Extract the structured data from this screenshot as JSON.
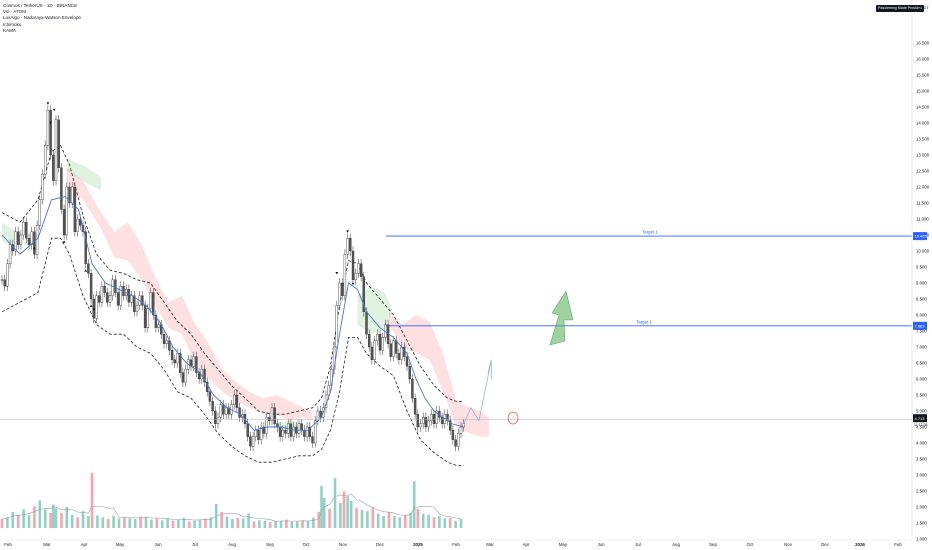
{
  "legend": {
    "title": "Cosmos / TetherUS · 1D · BINANCE",
    "line2": "Vol · ATOM",
    "line3": "LuxAlgo - Nadaraya-Watson Envelope",
    "line4": "Ichimoku",
    "line5": "KAMA"
  },
  "header": {
    "badge": "Pasoleming Mode Provided",
    "unit": "USDT"
  },
  "chart_data": {
    "type": "line",
    "title": "Cosmos / TetherUS · 1D · BINANCE",
    "xlabel": "",
    "ylabel": "USDT",
    "ylim": [
      0.5,
      17.0
    ],
    "grid": false,
    "y_ticks": [
      "1.000",
      "1.500",
      "2.000",
      "2.500",
      "3.000",
      "3.500",
      "4.000",
      "4.500",
      "5.000",
      "5.500",
      "6.000",
      "6.500",
      "7.000",
      "7.500",
      "8.000",
      "8.500",
      "9.000",
      "9.500",
      "10.000",
      "10.500",
      "11.000",
      "11.500",
      "12.000",
      "12.500",
      "13.000",
      "13.500",
      "14.000",
      "14.500",
      "15.000",
      "15.500",
      "16.000",
      "16.500"
    ],
    "x_ticks": [
      "Feb",
      "Mar",
      "Apr",
      "May",
      "Jun",
      "Jul",
      "Aug",
      "Sep",
      "Oct",
      "Nov",
      "Dec",
      "2025",
      "Feb",
      "Mar",
      "Apr",
      "May",
      "Jun",
      "Jul",
      "Aug",
      "Sep",
      "Oct",
      "Nov",
      "Dec",
      "2026",
      "Feb"
    ],
    "price": [
      [
        0,
        9.1
      ],
      [
        3,
        8.9
      ],
      [
        6,
        9.6
      ],
      [
        9,
        10.2
      ],
      [
        12,
        10.0
      ],
      [
        15,
        10.6
      ],
      [
        18,
        10.2
      ],
      [
        21,
        10.5
      ],
      [
        24,
        10.9
      ],
      [
        27,
        10.4
      ],
      [
        30,
        10.2
      ],
      [
        33,
        10.6
      ],
      [
        36,
        9.9
      ],
      [
        39,
        10.8
      ],
      [
        42,
        11.6
      ],
      [
        45,
        12.4
      ],
      [
        48,
        13.3
      ],
      [
        51,
        14.4
      ],
      [
        54,
        13.0
      ],
      [
        57,
        12.2
      ],
      [
        60,
        14.1
      ],
      [
        63,
        12.6
      ],
      [
        66,
        11.3
      ],
      [
        69,
        10.5
      ],
      [
        72,
        12.0
      ],
      [
        75,
        11.5
      ],
      [
        78,
        12.0
      ],
      [
        81,
        10.6
      ],
      [
        84,
        11.0
      ],
      [
        87,
        10.8
      ],
      [
        90,
        10.6
      ],
      [
        93,
        9.6
      ],
      [
        96,
        9.3
      ],
      [
        99,
        8.5
      ],
      [
        102,
        7.9
      ],
      [
        105,
        8.6
      ],
      [
        108,
        8.4
      ],
      [
        111,
        8.9
      ],
      [
        114,
        8.7
      ],
      [
        117,
        8.4
      ],
      [
        120,
        8.6
      ],
      [
        123,
        9.1
      ],
      [
        126,
        8.7
      ],
      [
        129,
        8.3
      ],
      [
        132,
        8.9
      ],
      [
        135,
        8.6
      ],
      [
        138,
        8.8
      ],
      [
        141,
        8.4
      ],
      [
        144,
        8.6
      ],
      [
        147,
        8.1
      ],
      [
        150,
        8.3
      ],
      [
        153,
        8.6
      ],
      [
        156,
        8.3
      ],
      [
        159,
        7.6
      ],
      [
        162,
        8.2
      ],
      [
        165,
        8.7
      ],
      [
        168,
        8.0
      ],
      [
        171,
        7.6
      ],
      [
        174,
        7.7
      ],
      [
        177,
        7.4
      ],
      [
        180,
        7.1
      ],
      [
        183,
        7.2
      ],
      [
        186,
        6.9
      ],
      [
        189,
        6.6
      ],
      [
        192,
        6.5
      ],
      [
        195,
        6.8
      ],
      [
        198,
        6.2
      ],
      [
        201,
        5.9
      ],
      [
        204,
        6.3
      ],
      [
        207,
        6.6
      ],
      [
        210,
        6.4
      ],
      [
        213,
        6.7
      ],
      [
        216,
        6.2
      ],
      [
        219,
        6.0
      ],
      [
        222,
        6.3
      ],
      [
        225,
        5.9
      ],
      [
        228,
        5.6
      ],
      [
        231,
        5.3
      ],
      [
        234,
        5.0
      ],
      [
        237,
        4.6
      ],
      [
        240,
        4.8
      ],
      [
        243,
        5.2
      ],
      [
        246,
        4.9
      ],
      [
        249,
        5.1
      ],
      [
        252,
        4.9
      ],
      [
        255,
        5.2
      ],
      [
        258,
        5.5
      ],
      [
        261,
        5.1
      ],
      [
        264,
        4.8
      ],
      [
        267,
        4.9
      ],
      [
        270,
        4.6
      ],
      [
        273,
        4.2
      ],
      [
        276,
        3.9
      ],
      [
        279,
        4.2
      ],
      [
        282,
        4.4
      ],
      [
        285,
        4.1
      ],
      [
        288,
        4.5
      ],
      [
        291,
        4.3
      ],
      [
        294,
        4.8
      ],
      [
        297,
        4.7
      ],
      [
        300,
        5.1
      ],
      [
        303,
        4.6
      ],
      [
        306,
        4.5
      ],
      [
        309,
        4.2
      ],
      [
        312,
        4.4
      ],
      [
        315,
        4.3
      ],
      [
        318,
        4.6
      ],
      [
        321,
        4.2
      ],
      [
        324,
        4.5
      ],
      [
        327,
        4.3
      ],
      [
        330,
        4.6
      ],
      [
        333,
        4.4
      ],
      [
        336,
        4.2
      ],
      [
        339,
        4.5
      ],
      [
        342,
        4.2
      ],
      [
        345,
        4.0
      ],
      [
        348,
        4.7
      ],
      [
        351,
        5.0
      ],
      [
        354,
        4.8
      ],
      [
        357,
        5.1
      ],
      [
        360,
        5.5
      ],
      [
        363,
        5.8
      ],
      [
        366,
        6.3
      ],
      [
        369,
        7.0
      ],
      [
        372,
        8.3
      ],
      [
        375,
        9.0
      ],
      [
        378,
        8.6
      ],
      [
        381,
        9.9
      ],
      [
        384,
        10.4
      ],
      [
        387,
        10.0
      ],
      [
        390,
        9.1
      ],
      [
        393,
        9.3
      ],
      [
        396,
        9.6
      ],
      [
        399,
        9.2
      ],
      [
        402,
        8.1
      ],
      [
        405,
        7.4
      ],
      [
        408,
        7.0
      ],
      [
        411,
        6.6
      ],
      [
        414,
        7.2
      ],
      [
        417,
        7.4
      ],
      [
        420,
        6.9
      ],
      [
        423,
        7.3
      ],
      [
        426,
        7.7
      ],
      [
        429,
        7.1
      ],
      [
        432,
        6.7
      ],
      [
        435,
        7.2
      ],
      [
        438,
        6.8
      ],
      [
        441,
        6.6
      ],
      [
        444,
        7.0
      ],
      [
        447,
        6.7
      ],
      [
        450,
        6.4
      ],
      [
        453,
        6.0
      ],
      [
        456,
        5.4
      ],
      [
        459,
        4.9
      ],
      [
        462,
        4.5
      ],
      [
        465,
        4.6
      ],
      [
        468,
        4.8
      ],
      [
        471,
        4.5
      ],
      [
        474,
        4.7
      ],
      [
        477,
        4.9
      ],
      [
        480,
        4.6
      ],
      [
        483,
        5.0
      ],
      [
        486,
        4.8
      ],
      [
        489,
        4.6
      ],
      [
        492,
        4.9
      ],
      [
        495,
        4.7
      ],
      [
        498,
        4.4
      ],
      [
        501,
        4.1
      ],
      [
        504,
        3.9
      ],
      [
        507,
        4.3
      ],
      [
        510,
        4.5
      ],
      [
        513,
        4.6
      ]
    ],
    "kama": [
      [
        0,
        10.5
      ],
      [
        20,
        9.9
      ],
      [
        40,
        10.4
      ],
      [
        55,
        11.6
      ],
      [
        70,
        11.7
      ],
      [
        85,
        11.3
      ],
      [
        100,
        9.6
      ],
      [
        115,
        9.0
      ],
      [
        130,
        8.8
      ],
      [
        145,
        8.6
      ],
      [
        160,
        8.3
      ],
      [
        175,
        7.8
      ],
      [
        190,
        7.0
      ],
      [
        205,
        6.5
      ],
      [
        220,
        6.2
      ],
      [
        235,
        5.5
      ],
      [
        250,
        5.1
      ],
      [
        265,
        4.9
      ],
      [
        280,
        4.4
      ],
      [
        295,
        4.5
      ],
      [
        310,
        4.5
      ],
      [
        325,
        4.4
      ],
      [
        340,
        4.4
      ],
      [
        355,
        4.8
      ],
      [
        365,
        5.6
      ],
      [
        375,
        7.4
      ],
      [
        385,
        9.0
      ],
      [
        395,
        8.8
      ],
      [
        405,
        8.1
      ],
      [
        420,
        7.6
      ],
      [
        435,
        7.3
      ],
      [
        450,
        6.8
      ],
      [
        460,
        6.0
      ],
      [
        470,
        5.4
      ],
      [
        480,
        5.0
      ],
      [
        490,
        4.8
      ],
      [
        500,
        4.6
      ],
      [
        513,
        4.5
      ]
    ],
    "envelope_upper": [
      [
        0,
        11.2
      ],
      [
        20,
        10.9
      ],
      [
        40,
        11.6
      ],
      [
        55,
        13.1
      ],
      [
        65,
        13.3
      ],
      [
        75,
        12.7
      ],
      [
        90,
        11.1
      ],
      [
        105,
        9.9
      ],
      [
        120,
        9.4
      ],
      [
        135,
        9.3
      ],
      [
        150,
        9.1
      ],
      [
        165,
        9.0
      ],
      [
        180,
        8.4
      ],
      [
        195,
        7.8
      ],
      [
        210,
        7.4
      ],
      [
        225,
        6.8
      ],
      [
        240,
        6.3
      ],
      [
        255,
        5.8
      ],
      [
        270,
        5.4
      ],
      [
        285,
        5.0
      ],
      [
        300,
        4.9
      ],
      [
        315,
        4.9
      ],
      [
        330,
        5.0
      ],
      [
        345,
        5.1
      ],
      [
        355,
        5.4
      ],
      [
        365,
        6.4
      ],
      [
        375,
        8.3
      ],
      [
        385,
        9.7
      ],
      [
        395,
        9.6
      ],
      [
        405,
        9.0
      ],
      [
        420,
        8.5
      ],
      [
        435,
        8.0
      ],
      [
        450,
        7.2
      ],
      [
        465,
        6.4
      ],
      [
        480,
        5.8
      ],
      [
        495,
        5.4
      ],
      [
        505,
        5.3
      ],
      [
        513,
        5.3
      ]
    ],
    "envelope_lower": [
      [
        0,
        8.1
      ],
      [
        20,
        8.4
      ],
      [
        40,
        8.7
      ],
      [
        55,
        10.4
      ],
      [
        65,
        10.4
      ],
      [
        75,
        9.9
      ],
      [
        90,
        8.6
      ],
      [
        105,
        7.7
      ],
      [
        120,
        7.4
      ],
      [
        135,
        7.4
      ],
      [
        150,
        7.0
      ],
      [
        165,
        6.8
      ],
      [
        180,
        6.3
      ],
      [
        195,
        5.6
      ],
      [
        210,
        5.4
      ],
      [
        225,
        4.9
      ],
      [
        240,
        4.3
      ],
      [
        255,
        3.9
      ],
      [
        270,
        3.6
      ],
      [
        285,
        3.4
      ],
      [
        300,
        3.4
      ],
      [
        315,
        3.5
      ],
      [
        330,
        3.6
      ],
      [
        345,
        3.6
      ],
      [
        355,
        3.8
      ],
      [
        365,
        4.4
      ],
      [
        375,
        5.6
      ],
      [
        385,
        7.3
      ],
      [
        395,
        7.3
      ],
      [
        405,
        6.8
      ],
      [
        420,
        6.4
      ],
      [
        435,
        6.1
      ],
      [
        450,
        5.0
      ],
      [
        465,
        4.1
      ],
      [
        480,
        3.7
      ],
      [
        495,
        3.4
      ],
      [
        505,
        3.3
      ],
      [
        513,
        3.3
      ]
    ],
    "cloud_red": [
      [
        72,
        12.6,
        11.9
      ],
      [
        90,
        12.2,
        11.6
      ],
      [
        110,
        11.2,
        10.7
      ],
      [
        125,
        10.6,
        9.8
      ],
      [
        140,
        10.9,
        9.7
      ],
      [
        155,
        10.2,
        9.1
      ],
      [
        170,
        9.2,
        8.3
      ],
      [
        185,
        8.4,
        7.6
      ],
      [
        200,
        8.6,
        7.4
      ],
      [
        215,
        7.7,
        6.5
      ],
      [
        230,
        7.1,
        6.0
      ],
      [
        245,
        6.3,
        5.6
      ],
      [
        260,
        5.9,
        5.3
      ],
      [
        275,
        5.6,
        5.1
      ],
      [
        290,
        5.4,
        4.9
      ],
      [
        305,
        5.5,
        4.9
      ],
      [
        320,
        5.3,
        4.7
      ],
      [
        335,
        5.1,
        4.8
      ],
      [
        345,
        5.0,
        4.7
      ],
      [
        430,
        8.1,
        7.7
      ],
      [
        445,
        7.7,
        7.0
      ],
      [
        460,
        8.0,
        6.8
      ],
      [
        475,
        7.8,
        6.6
      ],
      [
        490,
        6.8,
        5.6
      ],
      [
        505,
        5.3,
        4.5
      ],
      [
        520,
        5.1,
        4.3
      ],
      [
        532,
        5.0,
        4.2
      ],
      [
        541,
        4.8,
        4.2
      ]
    ],
    "cloud_green": [
      [
        0,
        10.9,
        10.3
      ],
      [
        15,
        10.6,
        10.1
      ],
      [
        72,
        12.9,
        12.5
      ],
      [
        95,
        12.6,
        12.1
      ],
      [
        110,
        12.3,
        11.9
      ],
      [
        305,
        4.6,
        4.3
      ],
      [
        320,
        4.7,
        4.4
      ],
      [
        335,
        4.6,
        4.4
      ],
      [
        395,
        8.6,
        7.7
      ],
      [
        410,
        8.9,
        7.4
      ],
      [
        425,
        8.7,
        7.6
      ],
      [
        432,
        8.3,
        8.0
      ]
    ],
    "volume": [
      [
        0,
        0.15
      ],
      [
        6,
        0.18
      ],
      [
        12,
        0.27
      ],
      [
        18,
        0.22
      ],
      [
        24,
        0.31
      ],
      [
        30,
        0.21
      ],
      [
        36,
        0.36
      ],
      [
        42,
        0.46
      ],
      [
        48,
        0.31
      ],
      [
        54,
        0.25
      ],
      [
        57,
        0.39
      ],
      [
        60,
        0.33
      ],
      [
        66,
        0.25
      ],
      [
        72,
        0.35
      ],
      [
        78,
        0.22
      ],
      [
        84,
        0.18
      ],
      [
        90,
        0.28
      ],
      [
        96,
        0.2
      ],
      [
        100,
        0.92
      ],
      [
        106,
        0.21
      ],
      [
        112,
        0.18
      ],
      [
        118,
        0.15
      ],
      [
        124,
        0.2
      ],
      [
        130,
        0.16
      ],
      [
        136,
        0.18
      ],
      [
        142,
        0.16
      ],
      [
        148,
        0.15
      ],
      [
        154,
        0.19
      ],
      [
        160,
        0.19
      ],
      [
        166,
        0.14
      ],
      [
        172,
        0.16
      ],
      [
        178,
        0.13
      ],
      [
        184,
        0.16
      ],
      [
        190,
        0.12
      ],
      [
        196,
        0.14
      ],
      [
        202,
        0.17
      ],
      [
        208,
        0.11
      ],
      [
        214,
        0.12
      ],
      [
        220,
        0.14
      ],
      [
        226,
        0.16
      ],
      [
        232,
        0.18
      ],
      [
        238,
        0.4
      ],
      [
        244,
        0.27
      ],
      [
        250,
        0.19
      ],
      [
        256,
        0.15
      ],
      [
        262,
        0.17
      ],
      [
        268,
        0.16
      ],
      [
        274,
        0.24
      ],
      [
        280,
        0.11
      ],
      [
        286,
        0.13
      ],
      [
        292,
        0.12
      ],
      [
        298,
        0.1
      ],
      [
        304,
        0.11
      ],
      [
        310,
        0.12
      ],
      [
        316,
        0.14
      ],
      [
        322,
        0.1
      ],
      [
        328,
        0.11
      ],
      [
        334,
        0.13
      ],
      [
        340,
        0.11
      ],
      [
        346,
        0.17
      ],
      [
        352,
        0.27
      ],
      [
        355,
        0.7
      ],
      [
        358,
        0.5
      ],
      [
        364,
        0.32
      ],
      [
        370,
        0.83
      ],
      [
        376,
        0.42
      ],
      [
        380,
        0.61
      ],
      [
        384,
        0.53
      ],
      [
        388,
        0.45
      ],
      [
        394,
        0.33
      ],
      [
        400,
        0.3
      ],
      [
        406,
        0.28
      ],
      [
        412,
        0.34
      ],
      [
        418,
        0.24
      ],
      [
        424,
        0.2
      ],
      [
        430,
        0.26
      ],
      [
        436,
        0.2
      ],
      [
        442,
        0.18
      ],
      [
        448,
        0.22
      ],
      [
        454,
        0.25
      ],
      [
        458,
        0.78
      ],
      [
        462,
        0.32
      ],
      [
        468,
        0.24
      ],
      [
        474,
        0.22
      ],
      [
        480,
        0.18
      ],
      [
        486,
        0.2
      ],
      [
        492,
        0.16
      ],
      [
        498,
        0.17
      ],
      [
        504,
        0.12
      ],
      [
        510,
        0.15
      ]
    ],
    "annotations": {
      "target_1_upper": {
        "label": "Target 1",
        "value": "10.465"
      },
      "target_1_lower": {
        "label": "Target 1",
        "value": "7.663"
      },
      "current": {
        "value": "4.713",
        "countdown": "11:11:26"
      }
    }
  }
}
